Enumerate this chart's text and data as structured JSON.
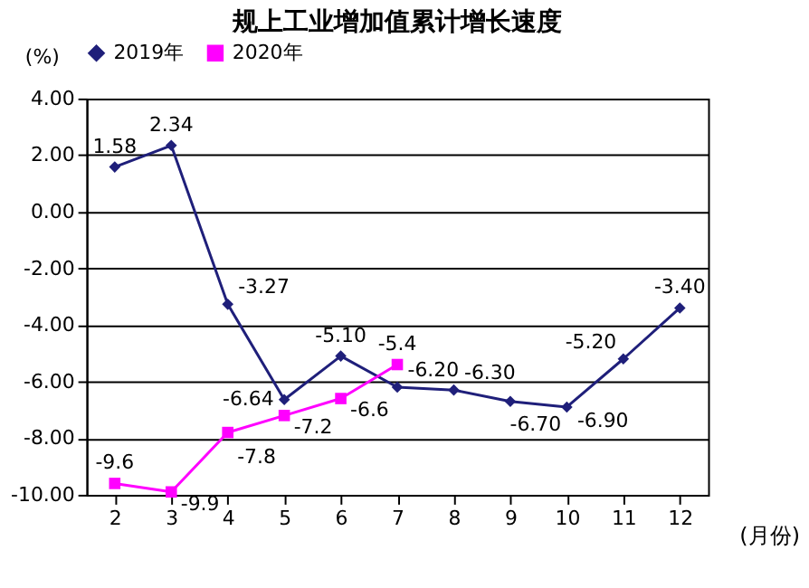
{
  "chart_data": {
    "type": "line",
    "title": "规上工业增加值累计增长速度",
    "ylabel": "(%)",
    "xlabel": "(月份)",
    "categories": [
      "2",
      "3",
      "4",
      "5",
      "6",
      "7",
      "8",
      "9",
      "10",
      "11",
      "12"
    ],
    "series": [
      {
        "name": "2019年",
        "color": "#1f1f7a",
        "marker": "diamond",
        "values": [
          1.58,
          2.34,
          -3.27,
          -6.64,
          -5.1,
          -6.2,
          -6.3,
          -6.7,
          -6.9,
          -5.2,
          -3.4
        ],
        "value_labels": [
          "1.58",
          "2.34",
          "-3.27",
          "-6.64",
          "-5.10",
          "-6.20",
          "-6.30",
          "-6.70",
          "-6.90",
          "-5.20",
          "-3.40"
        ]
      },
      {
        "name": "2020年",
        "color": "#ff00ff",
        "marker": "square",
        "values": [
          -9.6,
          -9.9,
          -7.8,
          -7.2,
          -6.6,
          -5.4,
          null,
          null,
          null,
          null,
          null
        ],
        "value_labels": [
          "-9.6",
          "-9.9",
          "-7.8",
          "-7.2",
          "-6.6",
          "-5.4",
          null,
          null,
          null,
          null,
          null
        ]
      }
    ],
    "ylim": [
      -10,
      4
    ],
    "yticks": [
      {
        "value": -10,
        "label": "-10.00"
      },
      {
        "value": -8,
        "label": "-8.00"
      },
      {
        "value": -6,
        "label": "-6.00"
      },
      {
        "value": -4,
        "label": "-4.00"
      },
      {
        "value": -2,
        "label": "-2.00"
      },
      {
        "value": 0,
        "label": "0.00"
      },
      {
        "value": 2,
        "label": "2.00"
      },
      {
        "value": 4,
        "label": "4.00"
      }
    ],
    "grid": "y",
    "legend": "top",
    "line_style": "solid"
  }
}
